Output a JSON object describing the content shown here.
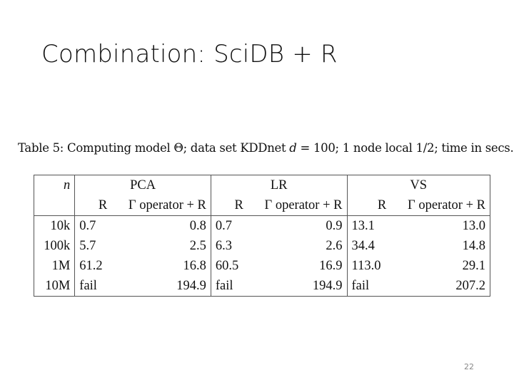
{
  "slide": {
    "title": "Combination: SciDB + R",
    "page_number": "22"
  },
  "caption": {
    "prefix": "Table 5:  Computing model Θ; data set KDDnet ",
    "d_var": "d",
    "suffix": " = 100; 1 node local 1/2; time in secs."
  },
  "table": {
    "n_header": "n",
    "groups": [
      "PCA",
      "LR",
      "VS"
    ],
    "sub_headers": [
      "R",
      "Γ operator + R"
    ],
    "rows": [
      {
        "n": "10k",
        "pca_r": "0.7",
        "pca_g": "0.8",
        "lr_r": "0.7",
        "lr_g": "0.9",
        "vs_r": "13.1",
        "vs_g": "13.0"
      },
      {
        "n": "100k",
        "pca_r": "5.7",
        "pca_g": "2.5",
        "lr_r": "6.3",
        "lr_g": "2.6",
        "vs_r": "34.4",
        "vs_g": "14.8"
      },
      {
        "n": "1M",
        "pca_r": "61.2",
        "pca_g": "16.8",
        "lr_r": "60.5",
        "lr_g": "16.9",
        "vs_r": "113.0",
        "vs_g": "29.1"
      },
      {
        "n": "10M",
        "pca_r": "fail",
        "pca_g": "194.9",
        "lr_r": "fail",
        "lr_g": "194.9",
        "vs_r": "fail",
        "vs_g": "207.2"
      }
    ]
  }
}
